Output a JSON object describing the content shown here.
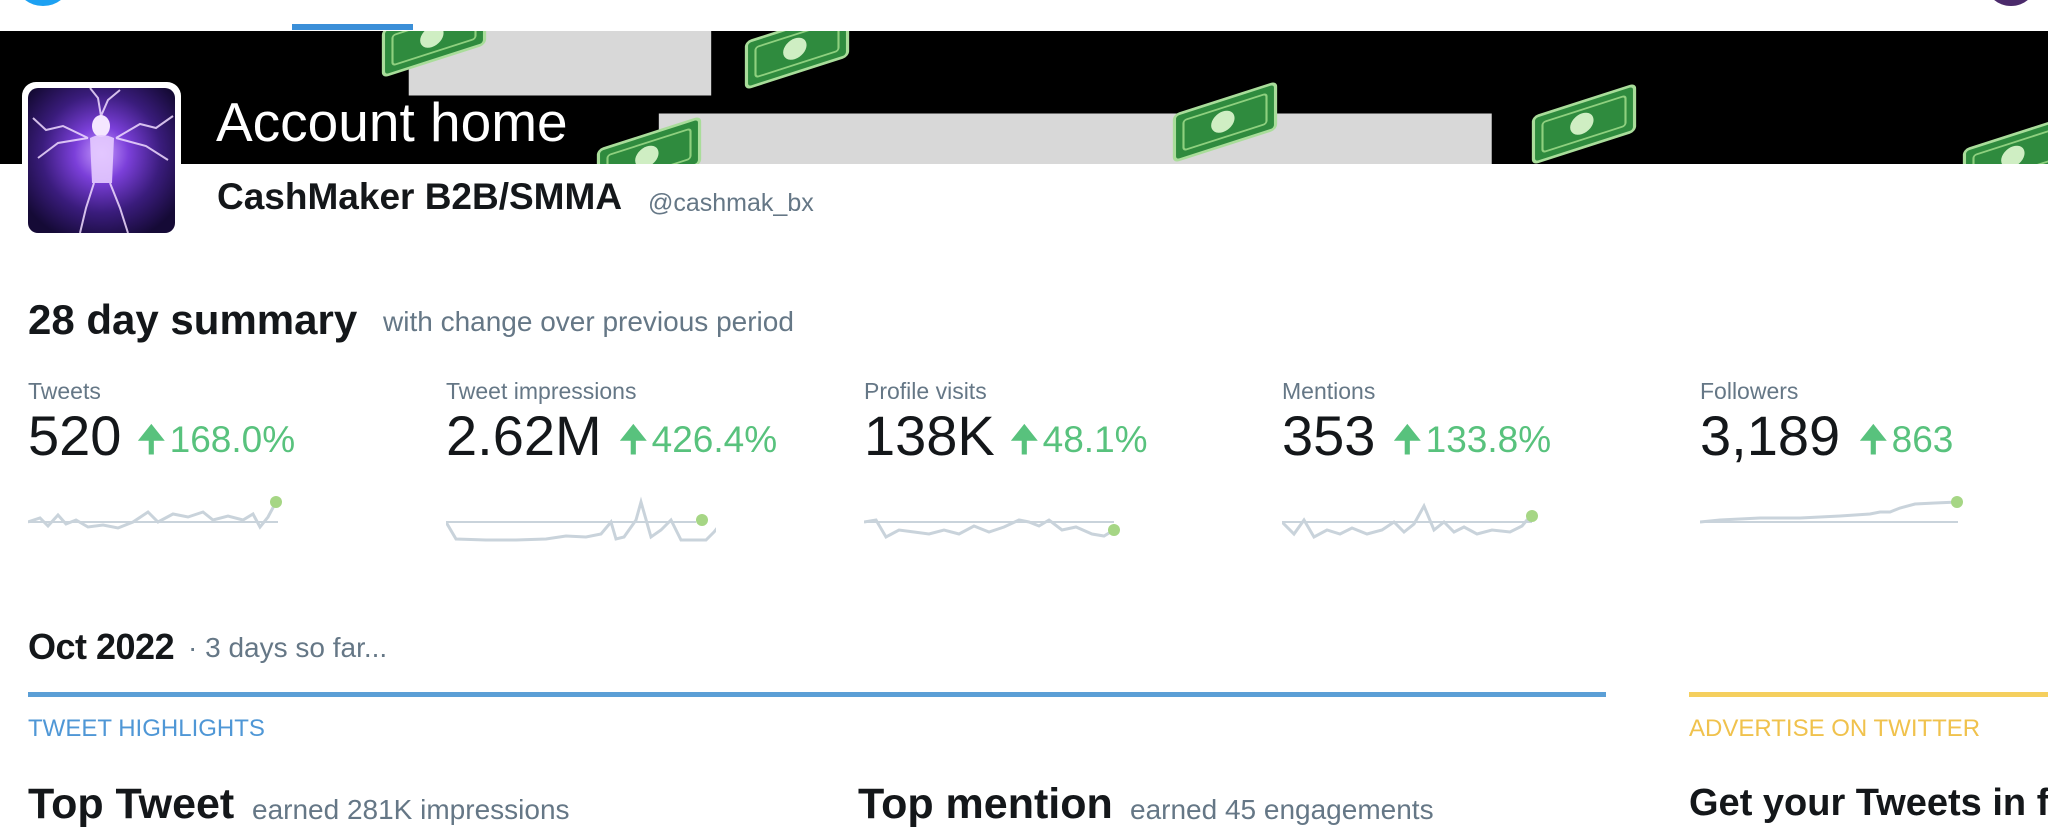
{
  "header": {
    "title": "Account home"
  },
  "account": {
    "name": "CashMaker B2B/SMMA",
    "handle": "@cashmak_bx"
  },
  "summary": {
    "title": "28 day summary",
    "subtitle": "with change over previous period",
    "stats": [
      {
        "label": "Tweets",
        "value": "520",
        "change": "168.0%",
        "trend": "up"
      },
      {
        "label": "Tweet impressions",
        "value": "2.62M",
        "change": "426.4%",
        "trend": "up"
      },
      {
        "label": "Profile visits",
        "value": "138K",
        "change": "48.1%",
        "trend": "up"
      },
      {
        "label": "Mentions",
        "value": "353",
        "change": "133.8%",
        "trend": "up"
      },
      {
        "label": "Followers",
        "value": "3,189",
        "change": "863",
        "trend": "up"
      }
    ]
  },
  "month": {
    "title": "Oct 2022",
    "subtitle": "· 3 days so far..."
  },
  "highlights": {
    "label": "TWEET HIGHLIGHTS",
    "top_tweet": {
      "title": "Top Tweet",
      "subtitle": "earned 281K impressions"
    },
    "top_mention": {
      "title": "Top mention",
      "subtitle": "earned 45 engagements"
    }
  },
  "advertise": {
    "label": "ADVERTISE ON TWITTER",
    "title": "Get your Tweets in f"
  },
  "colors": {
    "positive": "#58c27d",
    "accent_blue": "#5b9fd6",
    "accent_yellow": "#f5cf5e",
    "muted_text": "#657786",
    "sparkline": "#c9d3db",
    "sparkline_dot": "#a6d685"
  },
  "icons": {
    "change_arrow": "arrow-up-icon"
  }
}
